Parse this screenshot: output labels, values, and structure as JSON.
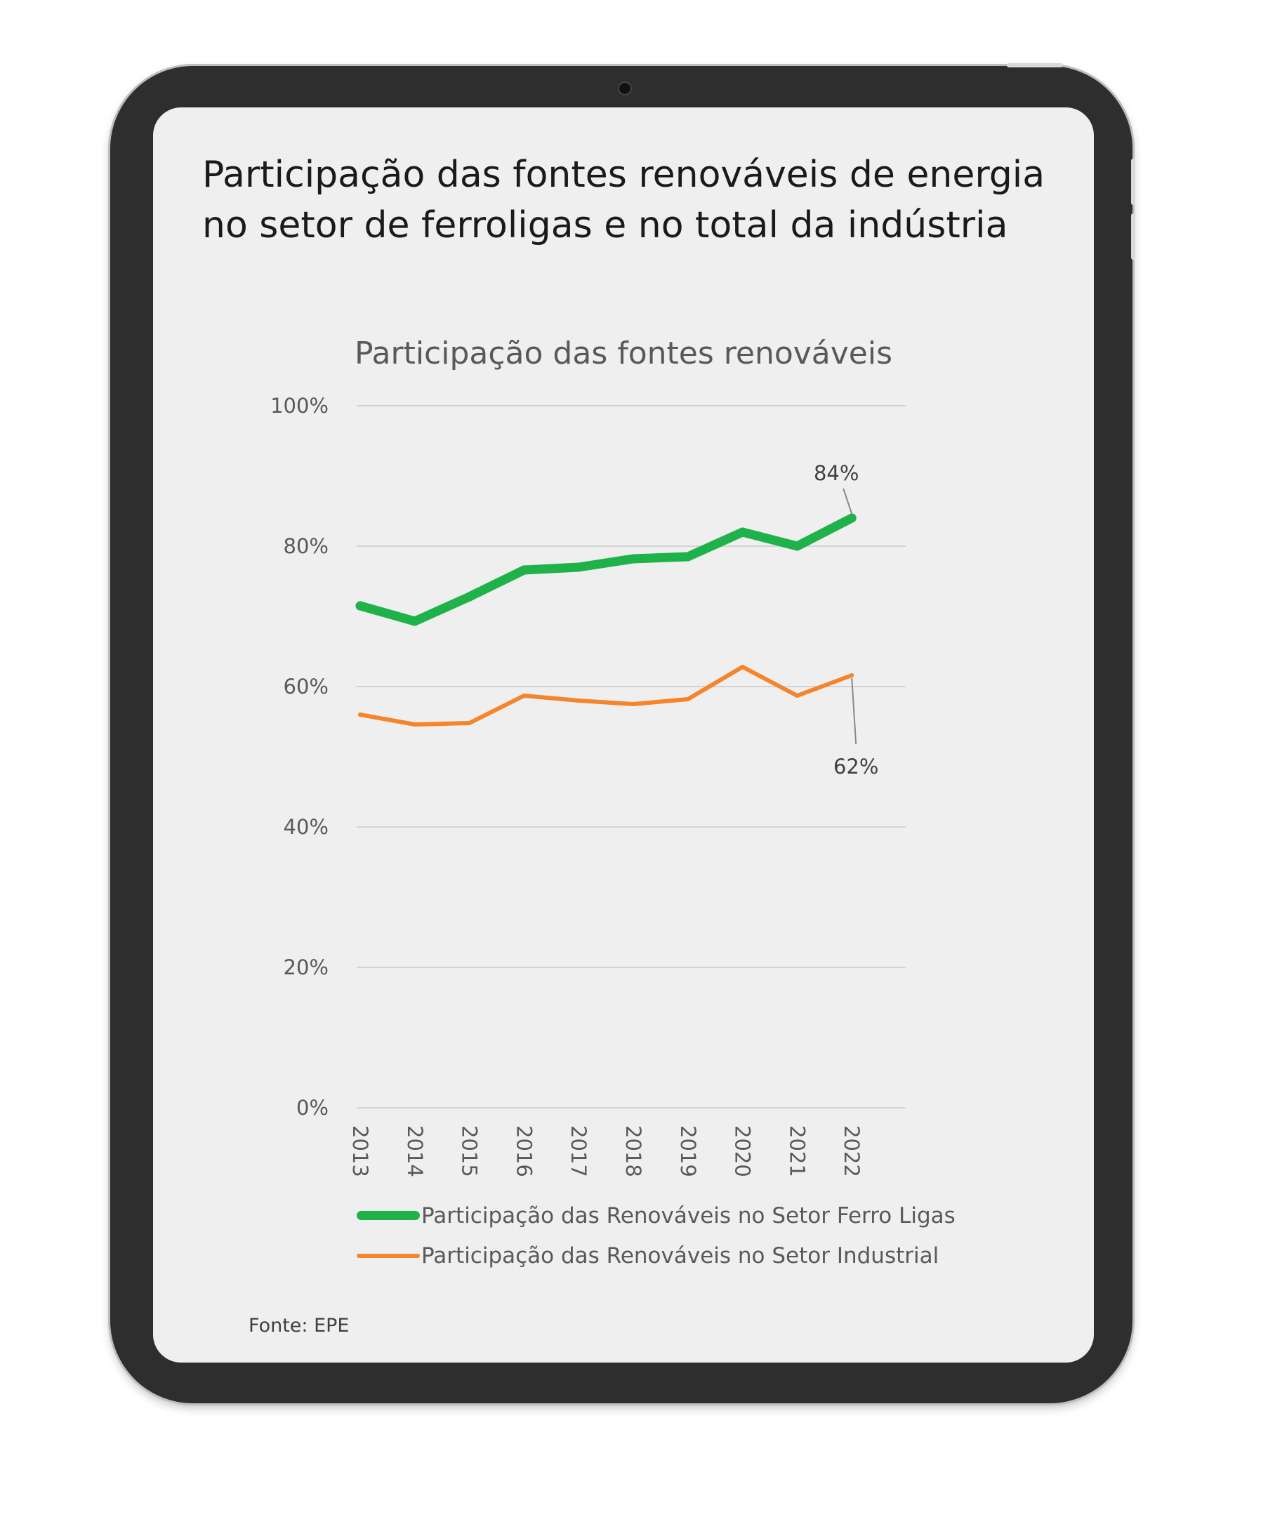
{
  "page": {
    "title": "Participação das fontes renováveis de energia no setor de ferroligas e no total da indústria",
    "source": "Fonte: EPE"
  },
  "colors": {
    "ferro_ligas": "#1fb24a",
    "industrial": "#f4852d",
    "grid": "#d4d4d4",
    "tablet_frame": "#2e2e2e",
    "screen": "#efefef"
  },
  "chart_data": {
    "type": "line",
    "title": "Participação das fontes renováveis",
    "categories": [
      "2013",
      "2014",
      "2015",
      "2016",
      "2017",
      "2018",
      "2019",
      "2020",
      "2021",
      "2022"
    ],
    "y_ticks": [
      "0%",
      "20%",
      "40%",
      "60%",
      "80%",
      "100%"
    ],
    "ylim": [
      0,
      100
    ],
    "grid": true,
    "legend_position": "bottom",
    "series": [
      {
        "name": "Participação das Renováveis no Setor Ferro Ligas",
        "values": [
          71.5,
          69.3,
          72.8,
          76.6,
          77.0,
          78.2,
          78.5,
          82.0,
          80.0,
          84.0
        ],
        "end_label": "84%"
      },
      {
        "name": "Participação das Renováveis no Setor Industrial",
        "values": [
          56.0,
          54.6,
          54.8,
          58.7,
          58.0,
          57.5,
          58.2,
          62.8,
          58.7,
          61.6
        ],
        "end_label": "62%"
      }
    ]
  }
}
